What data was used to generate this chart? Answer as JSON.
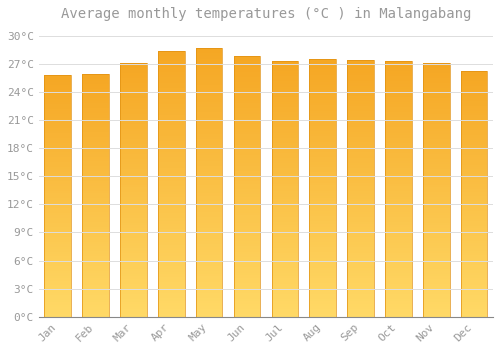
{
  "title": "Average monthly temperatures (°C ) in Malangabang",
  "months": [
    "Jan",
    "Feb",
    "Mar",
    "Apr",
    "May",
    "Jun",
    "Jul",
    "Aug",
    "Sep",
    "Oct",
    "Nov",
    "Dec"
  ],
  "temperatures": [
    25.8,
    25.9,
    27.1,
    28.4,
    28.7,
    27.8,
    27.3,
    27.5,
    27.4,
    27.3,
    27.1,
    26.2
  ],
  "bar_color_top": "#F5A623",
  "bar_color_bottom": "#FFD966",
  "ylim": [
    0,
    31
  ],
  "yticks": [
    0,
    3,
    6,
    9,
    12,
    15,
    18,
    21,
    24,
    27,
    30
  ],
  "ytick_labels": [
    "0°C",
    "3°C",
    "6°C",
    "9°C",
    "12°C",
    "15°C",
    "18°C",
    "21°C",
    "24°C",
    "27°C",
    "30°C"
  ],
  "bg_color": "#FFFFFF",
  "grid_color": "#DDDDDD",
  "title_fontsize": 10,
  "tick_fontsize": 8,
  "font_color": "#999999",
  "bar_edge_color": "#E09010",
  "bar_width": 0.7
}
